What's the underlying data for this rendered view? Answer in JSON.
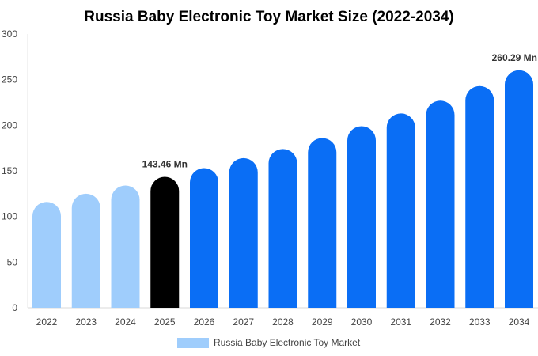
{
  "chart_data": {
    "type": "bar",
    "title": "Russia Baby Electronic Toy Market Size (2022-2034)",
    "categories": [
      "2022",
      "2023",
      "2024",
      "2025",
      "2026",
      "2027",
      "2028",
      "2029",
      "2030",
      "2031",
      "2032",
      "2033",
      "2034"
    ],
    "series": [
      {
        "name": "Russia Baby Electronic Toy Market",
        "values": [
          116,
          125,
          134,
          143.46,
          153,
          164,
          174,
          186,
          199,
          213,
          227,
          243,
          260.29
        ]
      }
    ],
    "data_labels": [
      {
        "index": 3,
        "text": "143.46 Mn"
      },
      {
        "index": 12,
        "text": "260.29 Mn"
      }
    ],
    "ylim": [
      0,
      300
    ],
    "yticks": [
      0,
      50,
      100,
      150,
      200,
      250,
      300
    ],
    "grid": false,
    "legend_position": "bottom",
    "colors": {
      "historical": "#9fcdfc",
      "current": "#000000",
      "forecast": "#0a6ef5",
      "legend_swatch": "#9fcdfc"
    },
    "color_groups": [
      "historical",
      "historical",
      "historical",
      "current",
      "forecast",
      "forecast",
      "forecast",
      "forecast",
      "forecast",
      "forecast",
      "forecast",
      "forecast",
      "forecast"
    ]
  }
}
